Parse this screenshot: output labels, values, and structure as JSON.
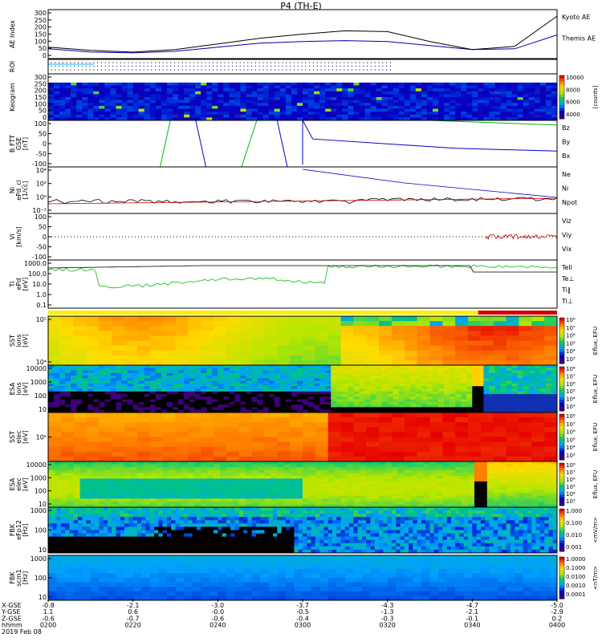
{
  "title": "P4 (TH-E)",
  "panels": [
    {
      "id": "ae",
      "ylabel": [
        "AE Index"
      ],
      "ticks": [
        "300",
        "250",
        "200",
        "150",
        "100",
        "50",
        "0"
      ],
      "legend": [
        {
          "text": "Kyoto AE",
          "color": "#00008b"
        },
        {
          "text": "Themis AE",
          "color": "#000000"
        }
      ]
    },
    {
      "id": "roi",
      "ylabel": [
        "ROI"
      ],
      "ticks": [],
      "legend": []
    },
    {
      "id": "keogram",
      "ylabel": [
        "Keogram"
      ],
      "ticks": [
        "300",
        "250",
        "200",
        "150",
        "100",
        "50",
        "0"
      ],
      "legend": [],
      "colorbar": {
        "ticks": [
          "10000",
          "8000",
          "6000",
          "4000"
        ],
        "label": "[counts]"
      }
    },
    {
      "id": "bfield",
      "ylabel": [
        "B FTT",
        "GSE",
        "[nT]"
      ],
      "ticks": [
        "100",
        "50",
        "0",
        "-50",
        "-100"
      ],
      "legend": [
        {
          "text": "Bz",
          "color": "#cc0000"
        },
        {
          "text": "By",
          "color": "#00aa00"
        },
        {
          "text": "Bx",
          "color": "#0000cc"
        }
      ]
    },
    {
      "id": "density",
      "ylabel": [
        "Ni",
        "ePd_ci",
        "[1/cc]"
      ],
      "ticks": [
        "10⁴",
        "10²",
        "10⁰",
        "10⁻²"
      ],
      "legend": [
        {
          "text": "Ne",
          "color": "#cc0000"
        },
        {
          "text": "Ni",
          "color": "#000000"
        },
        {
          "text": "Npot",
          "color": "#0000cc"
        }
      ]
    },
    {
      "id": "velocity",
      "ylabel": [
        "Vi",
        "[km/s]"
      ],
      "ticks": [
        "100",
        "50",
        "0",
        "-50",
        "-100"
      ],
      "legend": [
        {
          "text": "Viz",
          "color": "#cc0000"
        },
        {
          "text": "Viy",
          "color": "#00aa00"
        },
        {
          "text": "Vix",
          "color": "#0000cc"
        }
      ]
    },
    {
      "id": "temp",
      "ylabel": [
        "Ti",
        "ePd",
        "[eV]"
      ],
      "ticks": [
        "1000.0",
        "100.0",
        "10.0",
        "1.0",
        "0.1"
      ],
      "legend": [
        {
          "text": "Tell",
          "color": "#000000"
        },
        {
          "text": "Te⊥",
          "color": "#cc0000"
        },
        {
          "text": "Ti‖",
          "color": "#00aa00"
        },
        {
          "text": "Ti⊥",
          "color": "#0000cc"
        }
      ]
    },
    {
      "id": "sst_i",
      "ylabel": [
        "SST",
        "ions",
        "[eV]"
      ],
      "ticks": [
        "10⁵",
        "10⁴"
      ],
      "legend": [],
      "colorbar": {
        "ticks": [
          "10⁸",
          "10⁷",
          "10⁶",
          "10⁵",
          "10⁴",
          "10³"
        ],
        "label": "Eflux, EFU"
      }
    },
    {
      "id": "esa_i",
      "ylabel": [
        "ESA",
        "ions",
        "[eV]"
      ],
      "ticks": [
        "10000",
        "1000",
        "100",
        "10"
      ],
      "legend": [],
      "colorbar": {
        "ticks": [
          "10⁸",
          "10⁷",
          "10⁶",
          "10⁵",
          "10⁴",
          "10³"
        ],
        "label": "Eflux, EFU"
      }
    },
    {
      "id": "sst_e",
      "ylabel": [
        "SST",
        "elec",
        "[eV]"
      ],
      "ticks": [
        "10⁵"
      ],
      "legend": [],
      "colorbar": {
        "ticks": [
          "10⁸",
          "10⁷",
          "10⁶",
          "10⁵",
          "10⁴",
          "10³"
        ],
        "label": "Eflux, EFU"
      }
    },
    {
      "id": "esa_e",
      "ylabel": [
        "ESA",
        "elec",
        "[eV]"
      ],
      "ticks": [
        "10000",
        "1000",
        "100",
        "10"
      ],
      "legend": [],
      "colorbar": {
        "ticks": [
          "10⁸",
          "10⁷",
          "10⁶",
          "10⁵",
          "10⁴",
          "10³"
        ],
        "label": "Eflux, EFU"
      }
    },
    {
      "id": "fbk_e",
      "ylabel": [
        "FBK",
        "eFp12",
        "[Hz]"
      ],
      "ticks": [
        "1000",
        "100",
        "10"
      ],
      "legend": [],
      "colorbar": {
        "ticks": [
          "1.000",
          "0.100",
          "0.010",
          "0.001"
        ],
        "label": "<mV/m>"
      }
    },
    {
      "id": "fbk_b",
      "ylabel": [
        "FBK",
        "scm1",
        "[Hz]"
      ],
      "ticks": [
        "1000",
        "100",
        "10"
      ],
      "legend": [],
      "colorbar": {
        "ticks": [
          "1.0000",
          "0.1000",
          "0.0100",
          "0.0010",
          "0.0001"
        ],
        "label": "<nT/m>"
      }
    }
  ],
  "xaxis": {
    "row_labels": [
      "X-GSE",
      "Y-GSE",
      "Z-GSE",
      "hhmm",
      "2019 Feb 08"
    ],
    "columns": [
      [
        "-0.8",
        "1.1",
        "-0.6",
        "0200"
      ],
      [
        "-2.1",
        "0.6",
        "-0.7",
        "0220"
      ],
      [
        "-3.0",
        "-0.0",
        "-0.6",
        "0240"
      ],
      [
        "-3.7",
        "-0.5",
        "-0.4",
        "0300"
      ],
      [
        "-4.3",
        "-1.3",
        "-0.3",
        "0320"
      ],
      [
        "-4.7",
        "-2.1",
        "-0.1",
        "0340"
      ],
      [
        "-5.0",
        "-2.9",
        "0.2",
        "0400"
      ]
    ]
  },
  "chart_data": {
    "type": "line",
    "title": "P4 (TH-E)",
    "x": [
      "0200",
      "0210",
      "0220",
      "0230",
      "0240",
      "0250",
      "0300",
      "0310",
      "0320",
      "0330",
      "0340",
      "0350",
      "0400"
    ],
    "xlabel": "hhmm",
    "series": [
      {
        "name": "Kyoto AE",
        "values": [
          60,
          40,
          35,
          45,
          70,
          95,
          105,
          110,
          105,
          80,
          55,
          60,
          145
        ]
      },
      {
        "name": "Themis AE",
        "values": [
          70,
          50,
          40,
          55,
          90,
          125,
          150,
          170,
          165,
          105,
          55,
          75,
          260
        ]
      }
    ],
    "ylabel": "AE Index",
    "ylim": [
      0,
      300
    ]
  }
}
